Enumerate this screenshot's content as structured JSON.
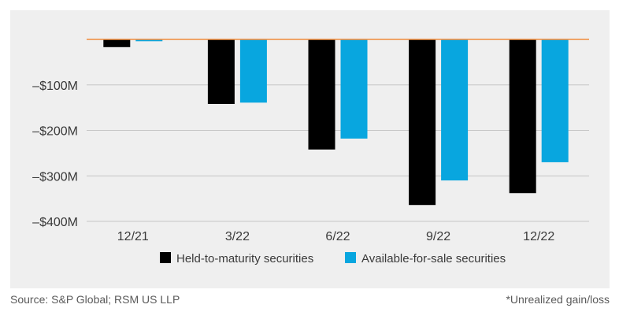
{
  "chart_data": {
    "type": "bar",
    "title": "",
    "xlabel": "",
    "ylabel": "",
    "categories": [
      "12/21",
      "3/22",
      "6/22",
      "9/22",
      "12/22"
    ],
    "series": [
      {
        "name": "Held-to-maturity securities",
        "color": "#000000",
        "values": [
          -17,
          -142,
          -242,
          -364,
          -338
        ]
      },
      {
        "name": "Available-for-sale securities",
        "color": "#08a6df",
        "values": [
          -4,
          -139,
          -218,
          -310,
          -270
        ]
      }
    ],
    "yticks": [
      -100,
      -200,
      -300,
      -400
    ],
    "ytick_labels": [
      "–$100M",
      "–$200M",
      "–$300M",
      "–$400M"
    ],
    "ylim": [
      -400,
      0
    ],
    "zero_line_color": "#f08c3c",
    "grid": true,
    "legend_position": "bottom"
  },
  "footer": {
    "source": "Source: S&P Global; RSM US LLP",
    "note": "*Unrealized gain/loss"
  }
}
